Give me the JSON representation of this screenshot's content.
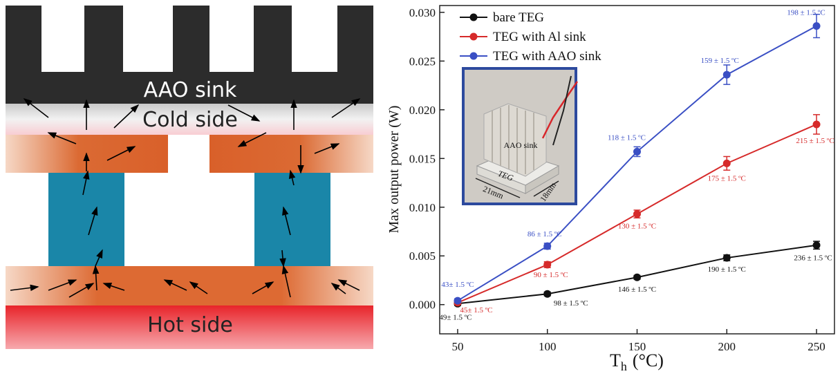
{
  "diagram": {
    "sink": "AAO sink",
    "cold": "Cold side",
    "hot": "Hot side"
  },
  "chart_data": {
    "type": "line",
    "ylabel": "Max output power (W)",
    "xlabel": "T",
    "xlabel_sub": "h",
    "xlabel_unit": "(°C)",
    "x": [
      50,
      100,
      150,
      200,
      250
    ],
    "xlim": [
      40,
      260
    ],
    "xticks": [
      50,
      100,
      150,
      200,
      250
    ],
    "ylim": [
      -0.003,
      0.0307
    ],
    "yticks": [
      {
        "value": 0,
        "label": "0.000"
      },
      {
        "value": 0.005,
        "label": "0.005"
      },
      {
        "value": 0.01,
        "label": "0.010"
      },
      {
        "value": 0.015,
        "label": "0.015"
      },
      {
        "value": 0.02,
        "label": "0.020"
      },
      {
        "value": 0.025,
        "label": "0.025"
      },
      {
        "value": 0.03,
        "label": "0.030"
      }
    ],
    "legend": "upper left",
    "series": [
      {
        "name": "bare TEG",
        "color": "#111111",
        "values": [
          0.0001,
          0.0011,
          0.0028,
          0.0048,
          0.0061
        ],
        "errors": [
          0.0002,
          0.0002,
          0.0002,
          0.0003,
          0.0004
        ],
        "point_labels": [
          "49± 1.5 ºC",
          "98 ± 1.5 ºC",
          "146 ± 1.5 ºC",
          "190 ± 1.5 ºC",
          "236 ± 1.5 ºC"
        ]
      },
      {
        "name": "TEG with Al sink",
        "color": "#d62a2a",
        "values": [
          0.0002,
          0.0041,
          0.0093,
          0.0145,
          0.0185
        ],
        "errors": [
          0.0002,
          0.0003,
          0.0004,
          0.0007,
          0.001
        ],
        "point_labels": [
          "45± 1.5 ºC",
          "90 ± 1.5 ºC",
          "130 ± 1.5 ºC",
          "175 ± 1.5 ºC",
          "215 ± 1.5 ºC"
        ]
      },
      {
        "name": "TEG with AAO sink",
        "color": "#3a4fc4",
        "values": [
          0.0004,
          0.006,
          0.0157,
          0.0236,
          0.0286
        ],
        "errors": [
          0.0002,
          0.0003,
          0.0005,
          0.001,
          0.0012
        ],
        "point_labels": [
          "43± 1.5 ºC",
          "86 ± 1.5 ºC",
          "118 ± 1.5 ºC",
          "159 ± 1.5 ºC",
          "198 ± 1.5 ºC"
        ]
      }
    ],
    "inset": {
      "sink": "AAO sink",
      "teg": "TEG",
      "width": "21mm",
      "depth": "18mm"
    }
  }
}
